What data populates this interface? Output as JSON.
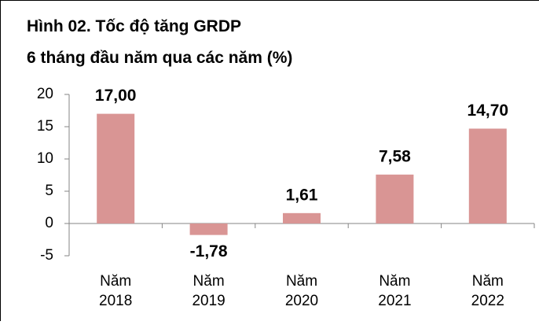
{
  "chart_data": {
    "type": "bar",
    "title": "Hình 02. Tốc độ tăng GRDP",
    "subtitle": "6 tháng đầu năm qua các năm (%)",
    "categories": [
      "Năm 2018",
      "Năm 2019",
      "Năm 2020",
      "Năm 2021",
      "Năm 2022"
    ],
    "values": [
      17.0,
      -1.78,
      1.61,
      7.58,
      14.7
    ],
    "value_labels": [
      "17,00",
      "-1,78",
      "1,61",
      "7,58",
      "14,70"
    ],
    "color": "#d99594",
    "ylim": [
      -5,
      20
    ],
    "yticks": [
      -5,
      0,
      5,
      10,
      15,
      20
    ],
    "grid": false
  }
}
